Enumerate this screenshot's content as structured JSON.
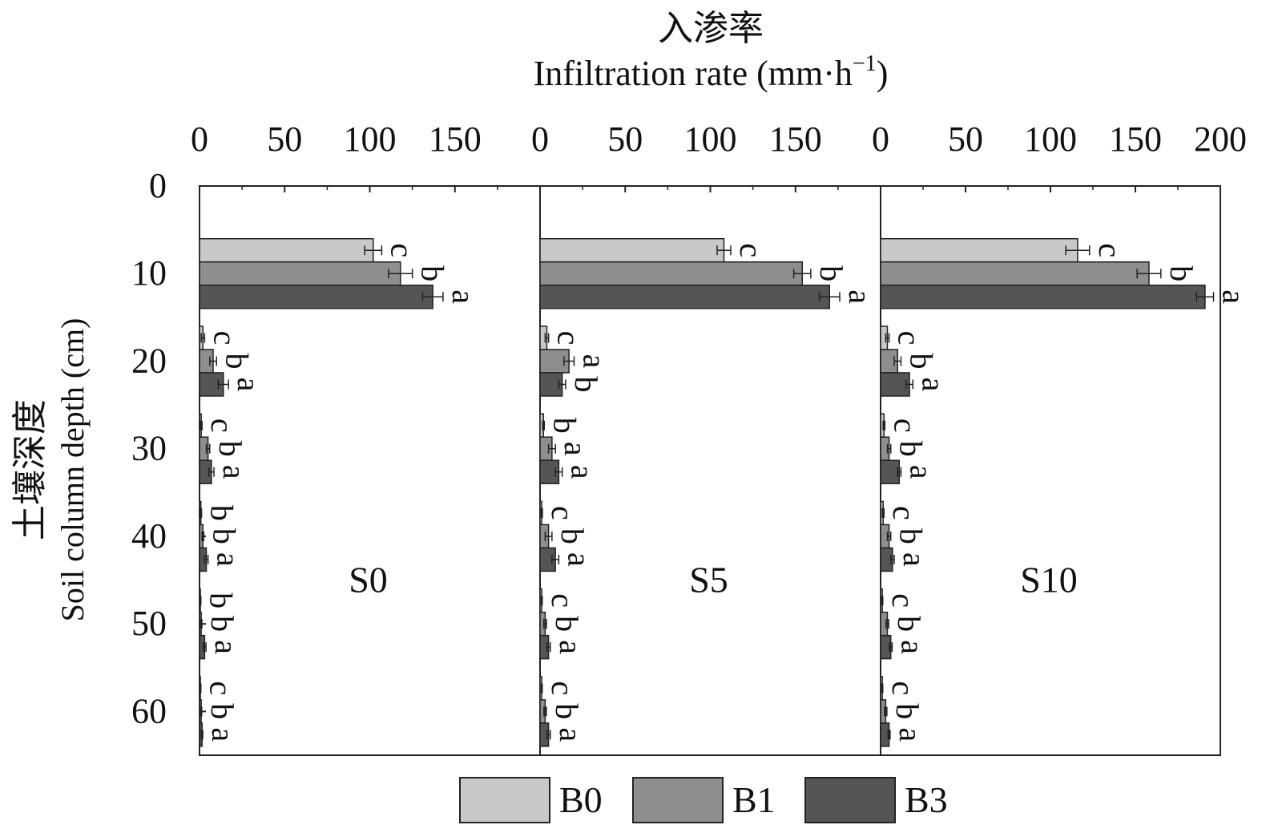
{
  "title_cn": "入渗率",
  "title_en": "Infiltration rate (mm·h",
  "title_en_sup": "−1",
  "title_en_close": ")",
  "ylabel_cn": "土壤深度",
  "ylabel_en": "Soil column depth (cm)",
  "legend": [
    {
      "name": "B0",
      "color": "#c8c8c8"
    },
    {
      "name": "B1",
      "color": "#8e8e8e"
    },
    {
      "name": "B3",
      "color": "#555555"
    }
  ],
  "chart_data": {
    "type": "bar",
    "orientation": "horizontal",
    "depth_ticks": [
      0,
      10,
      20,
      30,
      40,
      50,
      60
    ],
    "depth_range": [
      0,
      65
    ],
    "depth_groups": [
      10,
      20,
      30,
      40,
      50,
      60
    ],
    "series_names": [
      "B0",
      "B1",
      "B3"
    ],
    "panels": [
      {
        "name": "S0",
        "xlim": [
          0,
          200
        ],
        "xticks": [
          0,
          50,
          100,
          150
        ],
        "values": {
          "B0": [
            102,
            2,
            1,
            0.8,
            0.5,
            0.5
          ],
          "B1": [
            118,
            8,
            5,
            2,
            1,
            1
          ],
          "B3": [
            137,
            14,
            7,
            4,
            3,
            1.5
          ]
        },
        "errors": {
          "B0": [
            5,
            1,
            0.5,
            0.4,
            0.3,
            0.3
          ],
          "B1": [
            7,
            2,
            1,
            0.5,
            0.4,
            0.3
          ],
          "B3": [
            6,
            3,
            1.5,
            1,
            0.8,
            0.4
          ]
        },
        "labels": {
          "B0": [
            "c",
            "c",
            "c",
            "b",
            "b",
            "c"
          ],
          "B1": [
            "b",
            "b",
            "b",
            "b",
            "b",
            "b"
          ],
          "B3": [
            "a",
            "a",
            "a",
            "a",
            "a",
            "a"
          ]
        }
      },
      {
        "name": "S5",
        "xlim": [
          0,
          200
        ],
        "xticks": [
          0,
          50,
          100,
          150
        ],
        "values": {
          "B0": [
            108,
            4,
            2,
            1,
            1,
            1
          ],
          "B1": [
            154,
            17,
            7,
            5,
            3,
            3
          ],
          "B3": [
            170,
            13,
            11,
            9,
            5,
            5
          ]
        },
        "errors": {
          "B0": [
            4,
            1,
            0.5,
            0.4,
            0.3,
            0.3
          ],
          "B1": [
            5,
            3,
            2,
            2,
            0.8,
            0.7
          ],
          "B3": [
            6,
            2,
            2,
            2,
            1,
            1
          ]
        },
        "labels": {
          "B0": [
            "c",
            "c",
            "b",
            "c",
            "c",
            "c"
          ],
          "B1": [
            "b",
            "a",
            "a",
            "b",
            "b",
            "b"
          ],
          "B3": [
            "a",
            "b",
            "a",
            "a",
            "a",
            "a"
          ]
        }
      },
      {
        "name": "S10",
        "xlim": [
          0,
          200
        ],
        "xticks": [
          0,
          50,
          100,
          150,
          200
        ],
        "values": {
          "B0": [
            116,
            4,
            2,
            1.5,
            1,
            1
          ],
          "B1": [
            158,
            10,
            5,
            5,
            4,
            3
          ],
          "B3": [
            191,
            17,
            11,
            7,
            6,
            5
          ]
        },
        "errors": {
          "B0": [
            7,
            1,
            0.5,
            0.5,
            0.3,
            0.3
          ],
          "B1": [
            7,
            2,
            1,
            1,
            0.8,
            0.7
          ],
          "B3": [
            5,
            2,
            1,
            1,
            0.8,
            0.6
          ]
        },
        "labels": {
          "B0": [
            "c",
            "c",
            "c",
            "c",
            "c",
            "c"
          ],
          "B1": [
            "b",
            "b",
            "b",
            "b",
            "b",
            "b"
          ],
          "B3": [
            "a",
            "a",
            "a",
            "a",
            "a",
            "a"
          ]
        }
      }
    ]
  }
}
